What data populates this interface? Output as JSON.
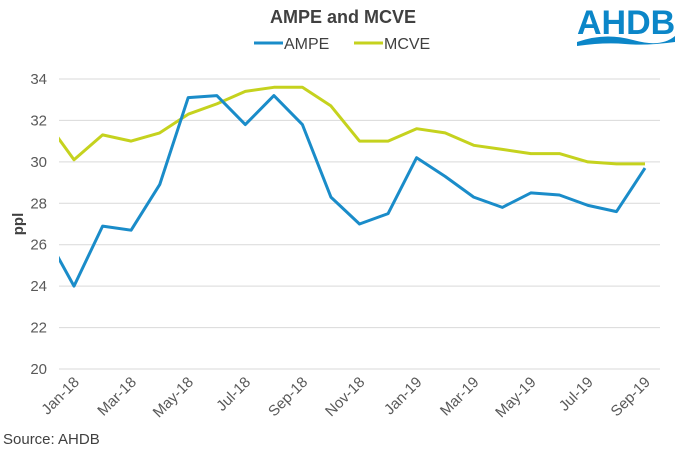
{
  "source": "Source: AHDB",
  "logo": {
    "text": "AHDB",
    "color": "#0b86c8"
  },
  "chart_data": {
    "type": "line",
    "title": "AMPE and MCVE",
    "xlabel": "",
    "ylabel": "ppl",
    "ylim": [
      20,
      34
    ],
    "yticks": [
      20,
      22,
      24,
      26,
      28,
      30,
      32,
      34
    ],
    "grid": true,
    "legend_position": "top",
    "x": [
      "Dec-17",
      "Jan-18",
      "Feb-18",
      "Mar-18",
      "Apr-18",
      "May-18",
      "Jun-18",
      "Jul-18",
      "Aug-18",
      "Sep-18",
      "Oct-18",
      "Nov-18",
      "Dec-18",
      "Jan-19",
      "Feb-19",
      "Mar-19",
      "Apr-19",
      "May-19",
      "Jun-19",
      "Jul-19",
      "Aug-19",
      "Sep-19"
    ],
    "xtick_labels": [
      "Jan-18",
      "Mar-18",
      "May-18",
      "Jul-18",
      "Sep-18",
      "Nov-18",
      "Jan-19",
      "Mar-19",
      "May-19",
      "Jul-19",
      "Sep-19"
    ],
    "series": [
      {
        "name": "AMPE",
        "color": "#1a8cc9",
        "values": [
          26.5,
          24.0,
          26.9,
          26.7,
          28.9,
          33.1,
          33.2,
          31.8,
          33.2,
          31.8,
          28.3,
          27.0,
          27.5,
          30.2,
          29.3,
          28.3,
          27.8,
          28.5,
          28.4,
          27.9,
          27.6,
          29.7
        ]
      },
      {
        "name": "MCVE",
        "color": "#c5d21e",
        "values": [
          32.0,
          30.1,
          31.3,
          31.0,
          31.4,
          32.3,
          32.8,
          33.4,
          33.6,
          33.6,
          32.7,
          31.0,
          31.0,
          31.6,
          31.4,
          30.8,
          30.6,
          30.4,
          30.4,
          30.0,
          29.9,
          29.9
        ]
      }
    ]
  }
}
